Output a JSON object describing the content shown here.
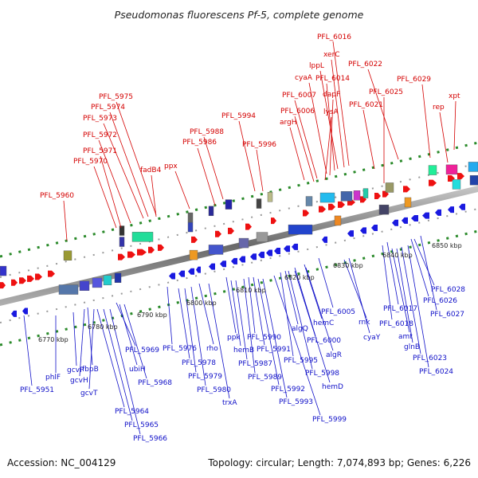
{
  "title": "Pseudomonas fluorescens Pf-5, complete genome",
  "footer": {
    "accession": "Accession: NC_004129",
    "summary": "Topology: circular; Length: 7,074,893 bp; Genes: 6,226"
  },
  "colors": {
    "forward_label": "#d40000",
    "reverse_label": "#1010c8",
    "forward_arrow": "#ee1111",
    "reverse_arrow": "#1a1ae0",
    "backbone": "#8a8a8a",
    "tick_green": "#2a8a2a"
  },
  "scale_labels": [
    "6770 kbp",
    "6780 kbp",
    "6790 kbp",
    "6800 kbp",
    "6810 kbp",
    "6820 kbp",
    "6830 kbp",
    "6840 kbp",
    "6850 kbp"
  ],
  "top_labels": [
    "PFL_6016",
    "xerC",
    "lppL",
    "PFL_6014",
    "PFL_6022",
    "cyaA",
    "dapF",
    "PFL_6029",
    "PFL_6007",
    "PFL_6025",
    "xpt",
    "lysA",
    "PFL_6021",
    "rep",
    "PFL_6006",
    "argH",
    "PFL_5994",
    "PFL_5996",
    "PFL_5988",
    "PFL_5986",
    "ppx",
    "fadB4",
    "PFL_5975",
    "PFL_5974",
    "PFL_5973",
    "PFL_5972",
    "PFL_5971",
    "PFL_5970",
    "PFL_5960"
  ],
  "bottom_labels": [
    "PFL_6028",
    "PFL_6026",
    "PFL_6027",
    "PFL_6017",
    "PFL_6018",
    "amt",
    "glnB",
    "PFL_6023",
    "PFL_6024",
    "PFL_6005",
    "rnk",
    "cyaY",
    "hemC",
    "PFL_6000",
    "algR",
    "algQ",
    "PFL_5995",
    "PFL_5998",
    "hemD",
    "PFL_5990",
    "PFL_5991",
    "ppk",
    "hemB",
    "PFL_5987",
    "PFL_5989",
    "PFL_5992",
    "PFL_5993",
    "PFL_5999",
    "PFL_5976",
    "rho",
    "PFL_5978",
    "PFL_5979",
    "PFL_5980",
    "trxA",
    "PFL_5969",
    "ubiH",
    "PFL_5968",
    "fbpB",
    "gcvH",
    "gcvT",
    "gcvP",
    "PFL_5964",
    "PFL_5965",
    "PFL_5966",
    "phlF",
    "PFL_5951"
  ]
}
